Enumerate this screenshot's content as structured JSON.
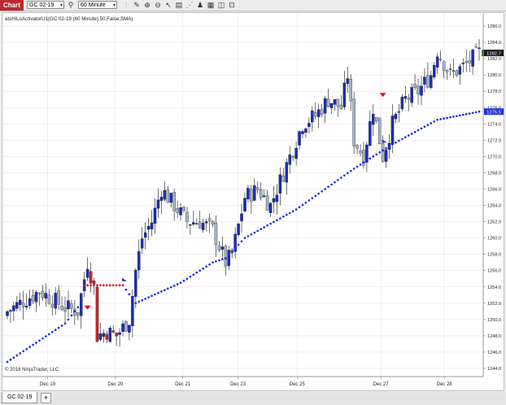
{
  "toolbar": {
    "chart_label": "Chart",
    "instrument": "GC 02-19",
    "interval": "60 Minute",
    "icons": [
      "search-icon",
      "bar-type-icon",
      "drawing-tools-icon",
      "zoom-in-icon",
      "zoom-out-icon",
      "pointer-icon",
      "properties-icon",
      "indicators-icon",
      "strategies-icon",
      "data-box-icon",
      "screenshot-icon",
      "lock-icon"
    ]
  },
  "chart": {
    "indicator_label": "atsHiLoActivatorU1(GC 02-19 (60 Minute),50,False,SMA)",
    "copyright": "© 2018 NinjaTrader, LLC",
    "price_tag": "1282.7",
    "indicator_tag": "1275.5",
    "colors": {
      "up": "#1a2fb5",
      "down": "#a0b4c4",
      "dot_up": "#1a2fe0",
      "dot_down": "#e0101a",
      "price_tag_bg": "#1a1a1a",
      "indicator_tag_bg": "#1a2fe0"
    }
  },
  "chart_data": {
    "type": "candlestick",
    "y_ticks": [
      "1244.0",
      "1246.0",
      "1248.0",
      "1250.0",
      "1252.0",
      "1254.0",
      "1256.0",
      "1258.0",
      "1260.0",
      "1262.0",
      "1264.0",
      "1266.0",
      "1268.0",
      "1270.0",
      "1272.0",
      "1274.0",
      "1276.0",
      "1278.0",
      "1280.0",
      "1282.0",
      "1284.0",
      "1286.0"
    ],
    "ylim": [
      1243.0,
      1287.6
    ],
    "x_ticks": [
      {
        "label": "Dec 19",
        "pos": 0.094
      },
      {
        "label": "Dec 20",
        "pos": 0.235
      },
      {
        "label": "Dec 21",
        "pos": 0.375
      },
      {
        "label": "Dec 23",
        "pos": 0.49
      },
      {
        "label": "Dec 25",
        "pos": 0.613
      },
      {
        "label": "Dec 27",
        "pos": 0.787
      },
      {
        "label": "Dec 28",
        "pos": 0.919
      }
    ],
    "close_anchors": [
      [
        0,
        1251
      ],
      [
        10,
        1253.5
      ],
      [
        18,
        1251.5
      ],
      [
        22,
        1251
      ],
      [
        25,
        1257
      ],
      [
        27,
        1254
      ],
      [
        28,
        1248
      ],
      [
        31,
        1248.5
      ],
      [
        34,
        1248
      ],
      [
        38,
        1250
      ],
      [
        40,
        1256
      ],
      [
        42,
        1260
      ],
      [
        45,
        1262
      ],
      [
        48,
        1266
      ],
      [
        52,
        1264
      ],
      [
        56,
        1262
      ],
      [
        60,
        1262
      ],
      [
        64,
        1261
      ],
      [
        68,
        1257
      ],
      [
        70,
        1258
      ],
      [
        74,
        1265
      ],
      [
        78,
        1266
      ],
      [
        82,
        1264
      ],
      [
        86,
        1268
      ],
      [
        92,
        1274
      ],
      [
        96,
        1275
      ],
      [
        100,
        1277
      ],
      [
        104,
        1276
      ],
      [
        106,
        1280
      ],
      [
        108,
        1272
      ],
      [
        111,
        1270
      ],
      [
        114,
        1276
      ],
      [
        117,
        1270
      ],
      [
        120,
        1274
      ],
      [
        124,
        1277
      ],
      [
        128,
        1278
      ],
      [
        132,
        1280
      ],
      [
        134,
        1283
      ],
      [
        138,
        1280
      ],
      [
        142,
        1281
      ],
      [
        147,
        1282.7
      ]
    ],
    "indicator_anchors": [
      [
        0,
        1244.8
      ],
      [
        18,
        1249.5
      ],
      [
        26,
        1253.5
      ],
      [
        36,
        1254.2
      ],
      [
        40,
        1252
      ],
      [
        54,
        1254.5
      ],
      [
        64,
        1257
      ],
      [
        68,
        1257.5
      ],
      [
        74,
        1260
      ],
      [
        90,
        1263.5
      ],
      [
        108,
        1268.5
      ],
      [
        120,
        1271.5
      ],
      [
        134,
        1274.5
      ],
      [
        147,
        1275.5
      ]
    ],
    "indicator_red_range": [
      24,
      36
    ],
    "signals": [
      {
        "type": "sell",
        "bar": 25,
        "price": 1251.5
      },
      {
        "type": "buy",
        "bar": 36,
        "price": 1254.8
      },
      {
        "type": "sell",
        "bar": 117,
        "price": 1277.6
      },
      {
        "type": "buy",
        "bar": 117,
        "price": 1271.8
      }
    ],
    "bar_count": 148
  },
  "tabs": [
    {
      "label": "GC 02-19"
    }
  ],
  "tab_add": "+"
}
